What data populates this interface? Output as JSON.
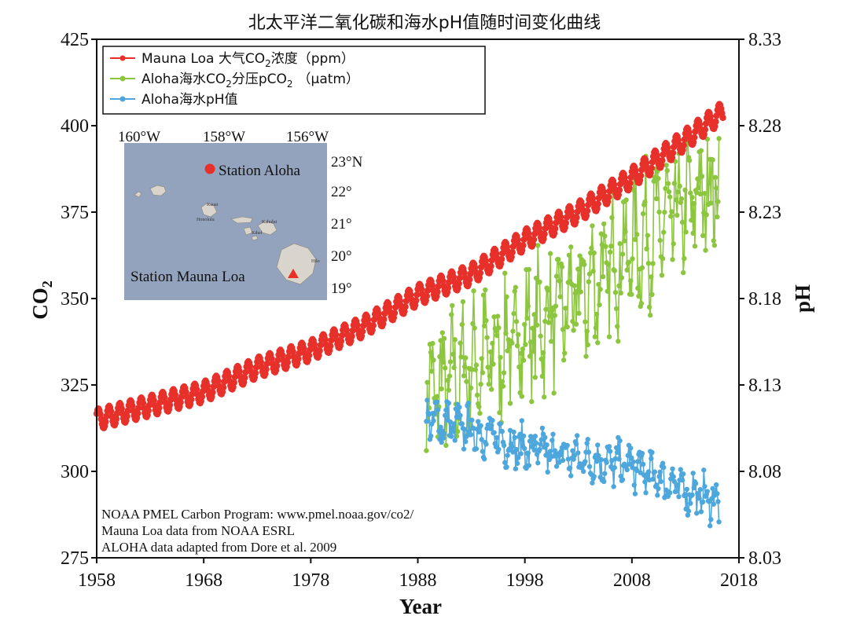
{
  "chart_data": {
    "type": "line",
    "title": "北太平洋二氧化碳和海水pH值随时间变化曲线",
    "xlabel": "Year",
    "ylabel": "CO2",
    "y2label": "pH",
    "xlim": [
      1958,
      2018
    ],
    "ylim": [
      275,
      425
    ],
    "y2lim": [
      8.03,
      8.33
    ],
    "xticks": [
      "1958",
      "1968",
      "1978",
      "1988",
      "1998",
      "2008",
      "2018"
    ],
    "yticks": [
      "275",
      "300",
      "325",
      "350",
      "375",
      "400",
      "425"
    ],
    "y2ticks": [
      "8.03",
      "8.08",
      "8.13",
      "8.18",
      "8.23",
      "8.28",
      "8.33"
    ],
    "legend_position": "top-left",
    "series": [
      {
        "name": "Mauna Loa 大气CO2浓度（ppm）",
        "legend_main": "Mauna Loa 大气CO",
        "legend_sub": "2",
        "legend_tail": "浓度（ppm）",
        "color": "#e8302a",
        "axis": "left",
        "trend": [
          {
            "x": 1958,
            "y": 315
          },
          {
            "x": 1963,
            "y": 319
          },
          {
            "x": 1968,
            "y": 323
          },
          {
            "x": 1973,
            "y": 330
          },
          {
            "x": 1978,
            "y": 335
          },
          {
            "x": 1983,
            "y": 342
          },
          {
            "x": 1988,
            "y": 351
          },
          {
            "x": 1993,
            "y": 357
          },
          {
            "x": 1998,
            "y": 367
          },
          {
            "x": 2003,
            "y": 375
          },
          {
            "x": 2008,
            "y": 385
          },
          {
            "x": 2013,
            "y": 396
          },
          {
            "x": 2016.5,
            "y": 404
          }
        ],
        "seasonal_amplitude": 3
      },
      {
        "name": "Aloha海水CO2分压pCO2（μatm）",
        "legend_main": "Aloha海水CO",
        "legend_sub": "2",
        "legend_mid": "分压pCO",
        "legend_sub2": "2",
        "legend_tail": "（μatm）",
        "color": "#8cc63f",
        "axis": "left",
        "trend": [
          {
            "x": 1988.8,
            "y": 322
          },
          {
            "x": 1993,
            "y": 330
          },
          {
            "x": 1998,
            "y": 340
          },
          {
            "x": 2003,
            "y": 350
          },
          {
            "x": 2008,
            "y": 365
          },
          {
            "x": 2013,
            "y": 376
          },
          {
            "x": 2016.2,
            "y": 385
          }
        ],
        "range": [
          306,
          401
        ]
      },
      {
        "name": "Aloha海水pH值",
        "legend_main": "Aloha海水pH值",
        "color": "#4ea7dc",
        "axis": "right",
        "trend": [
          {
            "x": 1988.8,
            "y": 8.111
          },
          {
            "x": 1993,
            "y": 8.104
          },
          {
            "x": 1998,
            "y": 8.093
          },
          {
            "x": 2003,
            "y": 8.088
          },
          {
            "x": 2008,
            "y": 8.083
          },
          {
            "x": 2013,
            "y": 8.069
          },
          {
            "x": 2016.2,
            "y": 8.062
          }
        ],
        "range": [
          8.043,
          8.128
        ]
      }
    ]
  },
  "notes": [
    "NOAA PMEL Carbon Program: www.pmel.noaa.gov/co2/",
    "Mauna Loa data from NOAA ESRL",
    "ALOHA data adapted from Dore et al. 2009"
  ],
  "map": {
    "lon_labels": [
      "160°W",
      "158°W",
      "156°W"
    ],
    "lat_labels": [
      "23°N",
      "22°",
      "21°",
      "20°",
      "19°"
    ],
    "station_aloha": "Station Aloha",
    "station_mauna_loa": "Station Mauna Loa",
    "island_labels": [
      "Kauai",
      "Honolulu",
      "Kahului",
      "Kihei",
      "Hilo"
    ],
    "colors": {
      "water": "#93a3bd",
      "land": "#d9d4cc",
      "marker": "#e8302a"
    }
  }
}
